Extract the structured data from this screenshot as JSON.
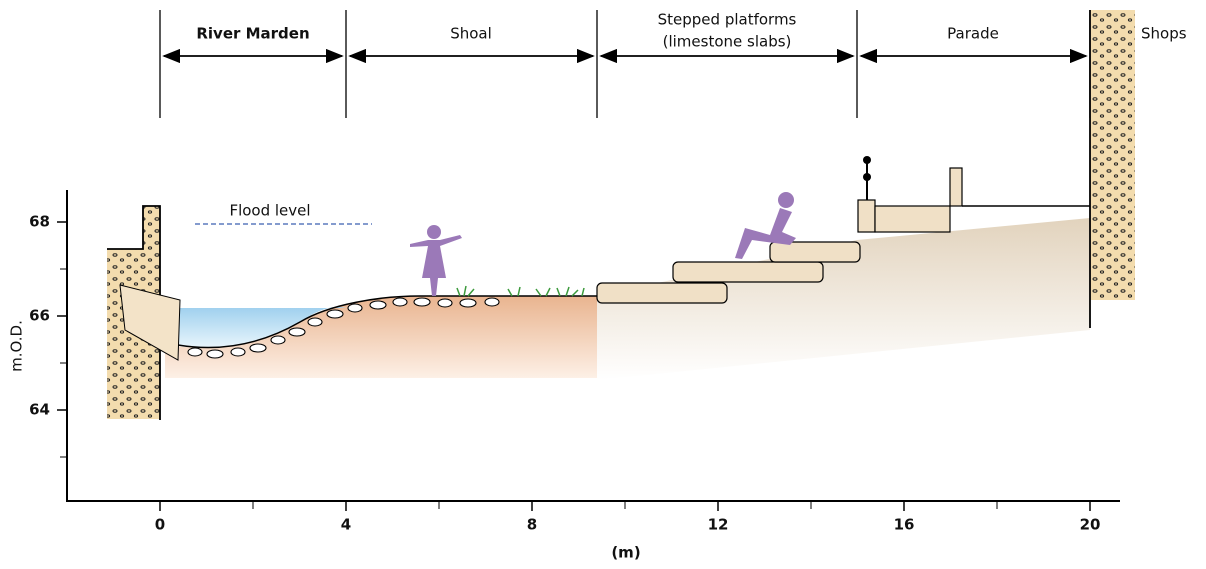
{
  "zones": [
    {
      "label": "River Marden"
    },
    {
      "label": "Shoal"
    },
    {
      "lines": [
        "Stepped platforms",
        "(limestone slabs)"
      ]
    },
    {
      "label": "Parade"
    }
  ],
  "shops": "Shops",
  "flood_level": "Flood level",
  "y_axis": {
    "label": "m.O.D.",
    "ticks": [
      64,
      66,
      68
    ],
    "minor_ticks": [
      63,
      65,
      67
    ]
  },
  "x_axis": {
    "label": "(m)",
    "ticks": [
      0,
      4,
      8,
      12,
      16,
      20
    ],
    "minor_ticks": [
      2,
      6,
      10,
      14,
      18
    ]
  }
}
